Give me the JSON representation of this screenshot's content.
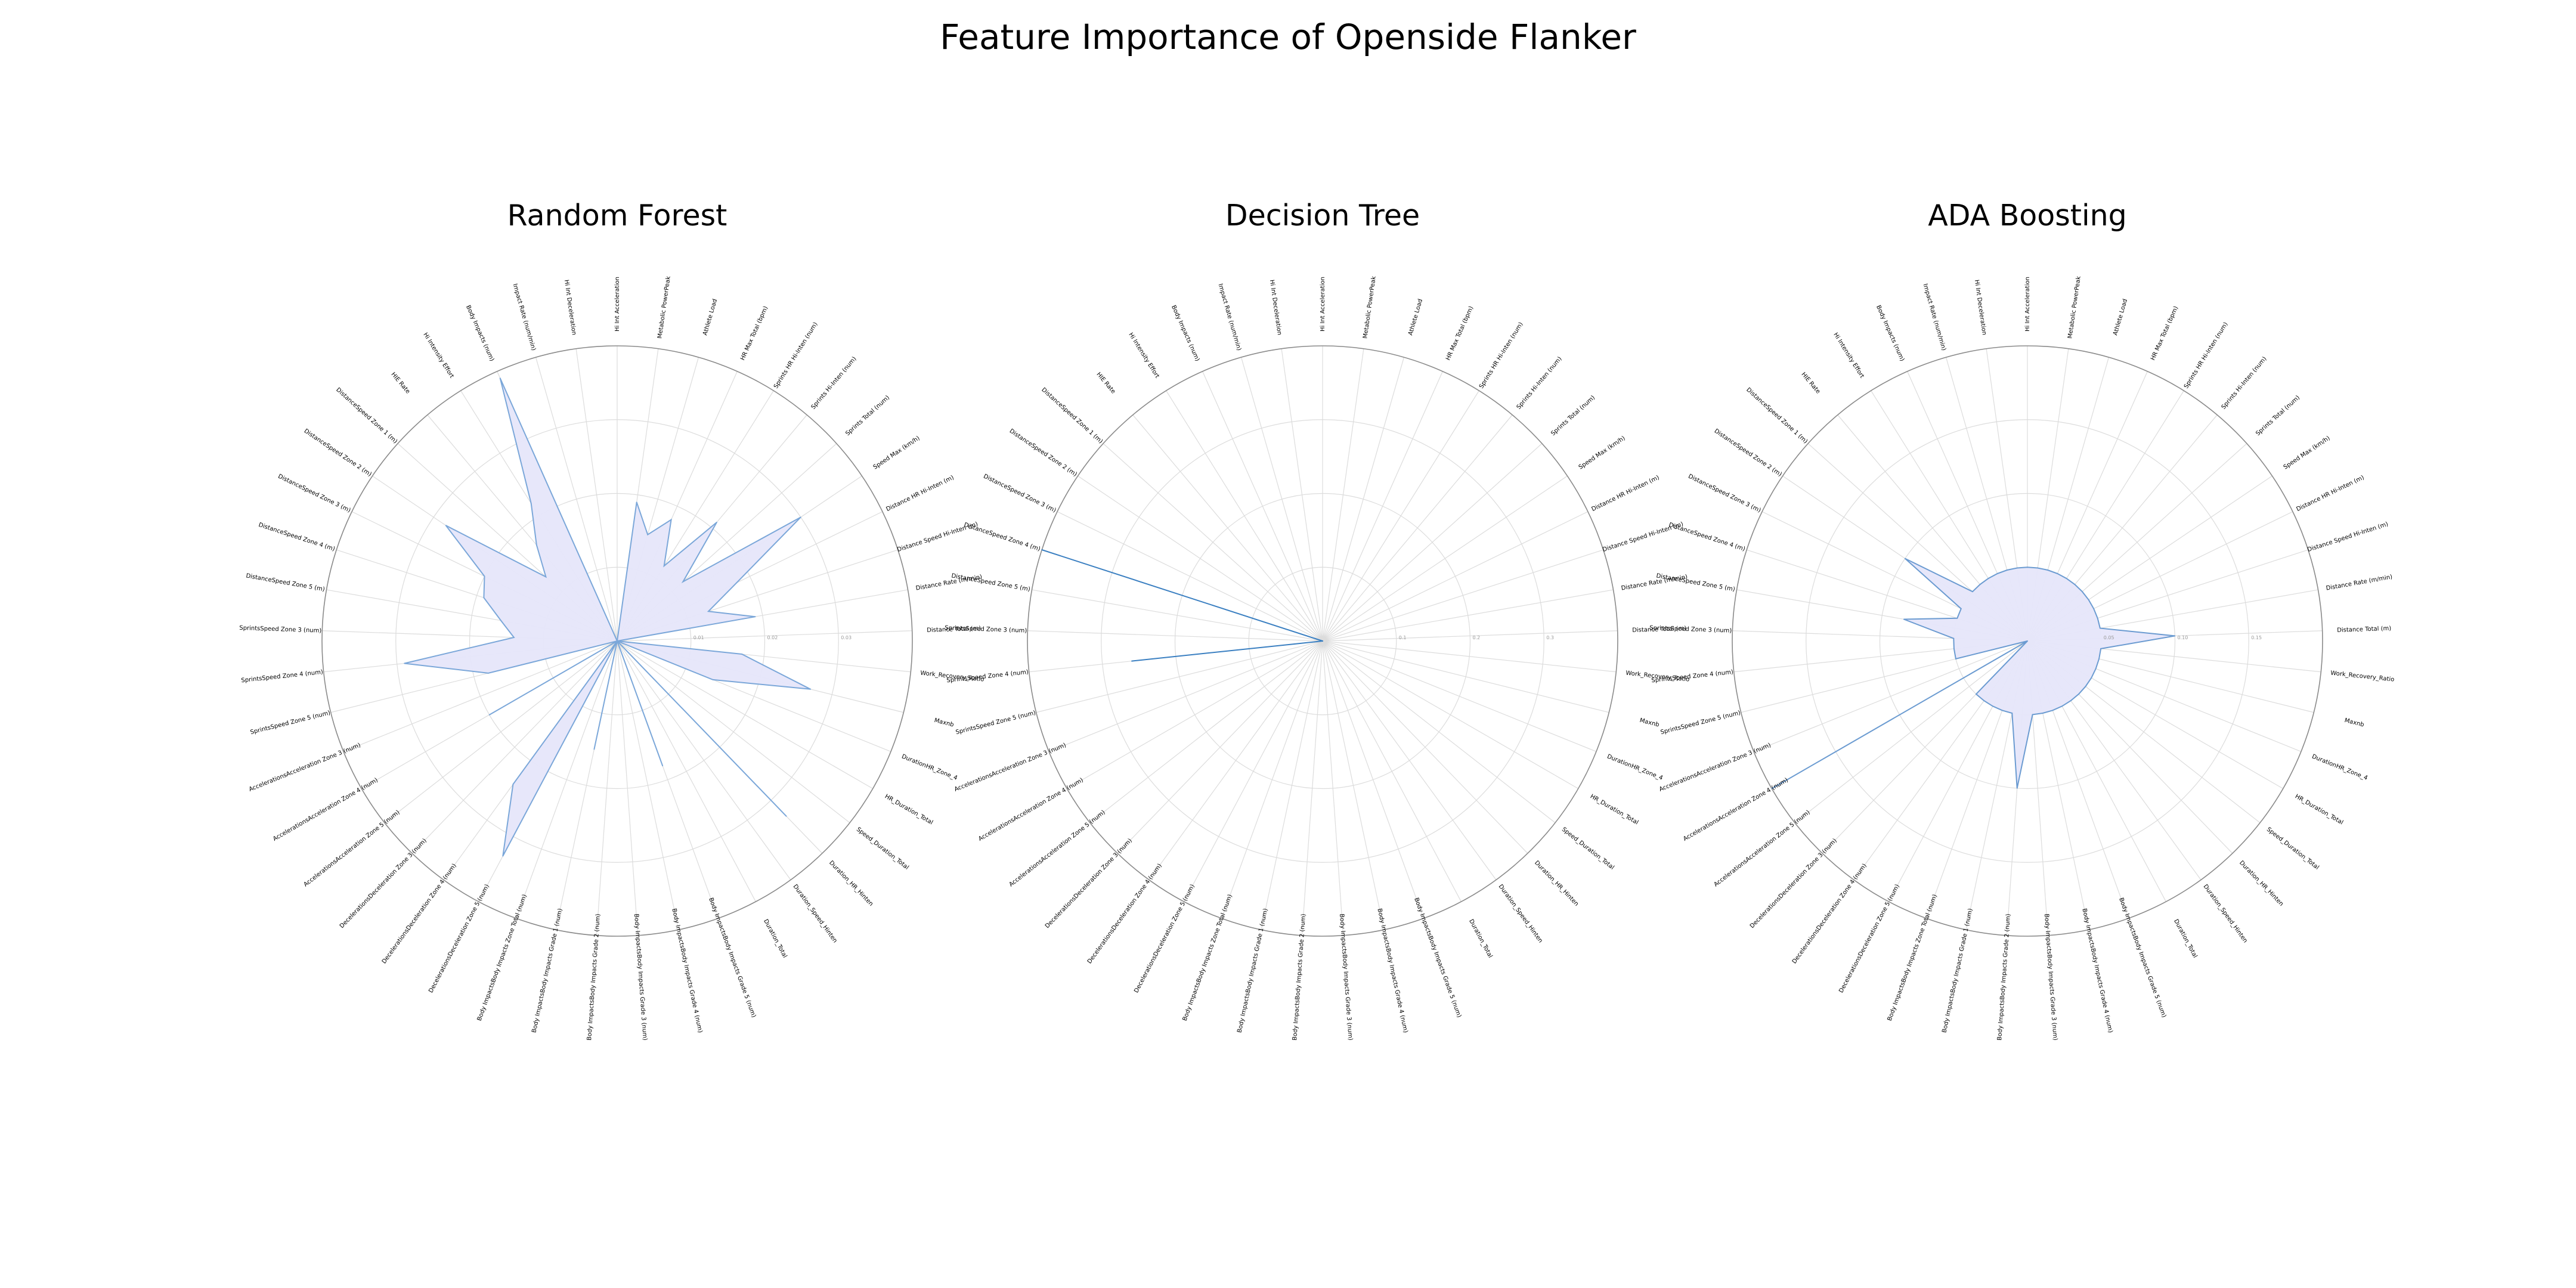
{
  "title": "Feature Importance of Openside Flanker",
  "features": [
    "Hi Int Acceleration",
    "Metabolic PowerPeak",
    "Athlete Load",
    "HR Max  Total (bpm)",
    "Sprints HR Hi-Inten (num)",
    "Sprints  Hi-Inten (num)",
    "Sprints  Total (num)",
    "Speed Max (km/h)",
    "Distance HR Hi-Inten (m)",
    "Distance Speed Hi-Inten (m)",
    "Distance Rate (m/min)",
    "Distance  Total (m)",
    "Work_Recovery_Ratio",
    "Maxnb",
    "DurationHR_Zone_4",
    "HR_Duration_Total",
    "Speed_Duration_Total",
    "Duration_HR_Hinten",
    "Duration_Speed_Hinten",
    "Duration_Total",
    "Body ImpactsBody Impacts Grade 5 (num)",
    "Body ImpactsBody Impacts Grade 4 (num)",
    "Body ImpactsBody Impacts Grade 3 (num)",
    "Body ImpactsBody Impacts Grade 2 (num)",
    "Body ImpactsBody Impacts Grade 1 (num)",
    "Body ImpactsBody Impacts Zone Total (num)",
    "DecelerationsDeceleration Zone 5 (num)",
    "DecelerationsDeceleration Zone 4 (num)",
    "DecelerationsDeceleration Zone 3 (num)",
    "AccelerationsAcceleration Zone 5 (num)",
    "AccelerationsAcceleration Zone 4 (num)",
    "AccelerationsAcceleration Zone 3 (num)",
    "SprintsSpeed Zone 5 (num)",
    "SprintsSpeed Zone 4 (num)",
    "SprintsSpeed Zone 3 (num)",
    "DistanceSpeed Zone 5  (m)",
    "DistanceSpeed Zone 4  (m)",
    "DistanceSpeed Zone 3  (m)",
    "DistanceSpeed Zone 2  (m)",
    "DistanceSpeed Zone 1  (m)",
    "HIE Rate",
    "Hi Intensity Effort",
    "Body Impacts (num)",
    "Impact Rate (num/min)",
    "Hi Int Deceleration"
  ],
  "chart_data": [
    {
      "type": "radar",
      "title": "Random Forest",
      "rlim": [
        0,
        0.04
      ],
      "rticks": [
        0.01,
        0.02,
        0.03
      ],
      "rtick_labels": [
        "0.01",
        "0.02",
        "0.03"
      ],
      "values": [
        0.0,
        0.019,
        0.015,
        0.018,
        0.012,
        0.021,
        0.012,
        0.03,
        0.018,
        0.013,
        0.019,
        0.0,
        0.017,
        0.027,
        0.014,
        0.0,
        0.0,
        0.033,
        0.0,
        0.0,
        0.018,
        0.0,
        0.0,
        0.0,
        0.015,
        0.0,
        0.033,
        0.024,
        0.0,
        0.0,
        0.02,
        0.0,
        0.018,
        0.029,
        0.014,
        0.016,
        0.019,
        0.02,
        0.028,
        0.013,
        0.017,
        0.022,
        0.039,
        0.0,
        0.0
      ],
      "fill_color": "#e6e6fa",
      "line_color": "#7ba7d9"
    },
    {
      "type": "radar",
      "title": "Decision Tree",
      "rlim": [
        0,
        0.4
      ],
      "rticks": [
        0.1,
        0.2,
        0.3
      ],
      "rtick_labels": [
        "0.1",
        "0.2",
        "0.3"
      ],
      "values": [
        0,
        0,
        0,
        0,
        0,
        0,
        0,
        0,
        0,
        0,
        0,
        0,
        0,
        0,
        0,
        0,
        0,
        0,
        0,
        0,
        0,
        0,
        0,
        0,
        0,
        0,
        0,
        0,
        0,
        0,
        0,
        0,
        0,
        0.26,
        0,
        0,
        0.4,
        0,
        0,
        0,
        0,
        0,
        0,
        0,
        0
      ],
      "fill_color": "#e6e6fa",
      "line_color": "#3a7fc1"
    },
    {
      "type": "radar",
      "title": "ADA Boosting",
      "rlim": [
        0,
        0.2
      ],
      "rticks": [
        0.05,
        0.1,
        0.15
      ],
      "rtick_labels": [
        "0.05",
        "0.10",
        "0.15"
      ],
      "values": [
        0.05,
        0.05,
        0.05,
        0.05,
        0.05,
        0.05,
        0.05,
        0.05,
        0.05,
        0.05,
        0.05,
        0.1,
        0.05,
        0.05,
        0.05,
        0.05,
        0.05,
        0.05,
        0.05,
        0.05,
        0.05,
        0.05,
        0.05,
        0.1,
        0.05,
        0.05,
        0.05,
        0.05,
        0.05,
        0.0,
        0.2,
        0.0,
        0.05,
        0.05,
        0.05,
        0.085,
        0.05,
        0.05,
        0.1,
        0.05,
        0.05,
        0.05,
        0.05,
        0.05,
        0.05
      ],
      "fill_color": "#e6e6fa",
      "line_color": "#6b9bd1"
    }
  ]
}
